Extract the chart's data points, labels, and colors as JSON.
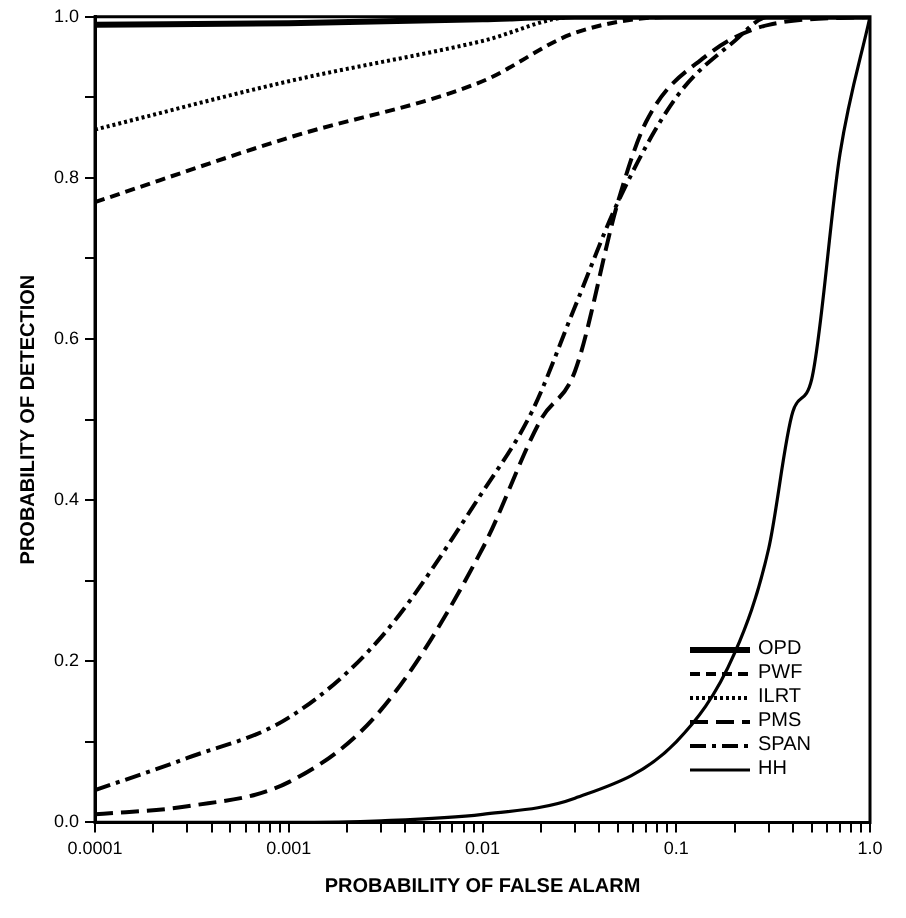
{
  "chart_data": {
    "type": "line",
    "xlabel": "PROBABILITY OF FALSE ALARM",
    "ylabel": "PROBABILITY OF DETECTION",
    "log": "x",
    "grid": false,
    "legend": "bottom right",
    "marker": "none",
    "xlim": [
      0.0001,
      1
    ],
    "ylim": [
      0,
      1
    ],
    "xticks": [
      0.0001,
      {
        "value": 0.0002,
        "label": null
      },
      {
        "value": 0.0003,
        "label": null
      },
      {
        "value": 0.0004,
        "label": null
      },
      {
        "value": 0.0005,
        "label": null
      },
      {
        "value": 0.0006,
        "label": null
      },
      {
        "value": 0.0007,
        "label": null
      },
      {
        "value": 0.0008,
        "label": null
      },
      {
        "value": 0.0009,
        "label": null
      },
      0.001,
      {
        "value": 0.002,
        "label": null
      },
      {
        "value": 0.003,
        "label": null
      },
      {
        "value": 0.004,
        "label": null
      },
      {
        "value": 0.005,
        "label": null
      },
      {
        "value": 0.006,
        "label": null
      },
      {
        "value": 0.007,
        "label": null
      },
      {
        "value": 0.008,
        "label": null
      },
      {
        "value": 0.009,
        "label": null
      },
      0.01,
      {
        "value": 0.02,
        "label": null
      },
      {
        "value": 0.03,
        "label": null
      },
      {
        "value": 0.04,
        "label": null
      },
      {
        "value": 0.05,
        "label": null
      },
      {
        "value": 0.06,
        "label": null
      },
      {
        "value": 0.07,
        "label": null
      },
      {
        "value": 0.08,
        "label": null
      },
      {
        "value": 0.09,
        "label": null
      },
      0.1,
      {
        "value": 0.2,
        "label": null
      },
      {
        "value": 0.3,
        "label": null
      },
      {
        "value": 0.4,
        "label": null
      },
      {
        "value": 0.5,
        "label": null
      },
      {
        "value": 0.6,
        "label": null
      },
      {
        "value": 0.7,
        "label": null
      },
      {
        "value": 0.8,
        "label": null
      },
      {
        "value": 0.9,
        "label": null
      },
      {
        "value": 1,
        "label": "1.0"
      }
    ],
    "yticks": [
      {
        "value": 0,
        "label": "0.0"
      },
      {
        "value": 0.1,
        "label": null
      },
      0.2,
      {
        "value": 0.3,
        "label": null
      },
      0.4,
      {
        "value": 0.5,
        "label": null
      },
      0.6,
      {
        "value": 0.7,
        "label": null
      },
      0.8,
      {
        "value": 0.9,
        "label": null
      },
      {
        "value": 1,
        "label": "1.0"
      }
    ],
    "series": [
      {
        "name": "OPD",
        "color": "#000000",
        "line_style": "solid",
        "x": [
          0.0001,
          0.001,
          0.01,
          0.03,
          1
        ],
        "values": [
          0.99,
          0.992,
          0.997,
          1,
          1
        ]
      },
      {
        "name": "PWF",
        "color": "#000000",
        "line_style": "dashed",
        "x": [
          0.0001,
          0.001,
          0.01,
          0.03,
          0.1,
          1
        ],
        "values": [
          0.77,
          0.85,
          0.92,
          0.98,
          1,
          1
        ]
      },
      {
        "name": "ILRT",
        "color": "#000000",
        "line_style": "dotted",
        "x": [
          0.0001,
          0.001,
          0.01,
          0.03,
          1
        ],
        "values": [
          0.86,
          0.92,
          0.97,
          1,
          1
        ]
      },
      {
        "name": "PMS",
        "color": "#000000",
        "line_style": "dashed",
        "x": [
          0.0001,
          0.0003,
          0.001,
          0.003,
          0.01,
          0.02,
          0.03,
          0.05,
          0.07,
          0.14,
          0.3,
          1
        ],
        "values": [
          0.01,
          0.02,
          0.05,
          0.14,
          0.34,
          0.5,
          0.56,
          0.77,
          0.87,
          0.95,
          0.99,
          1
        ]
      },
      {
        "name": "SPAN",
        "color": "#000000",
        "line_style": "dashed",
        "x": [
          0.0001,
          0.0003,
          0.001,
          0.003,
          0.01,
          0.018,
          0.03,
          0.05,
          0.1,
          0.2,
          0.3,
          1
        ],
        "values": [
          0.04,
          0.08,
          0.13,
          0.23,
          0.41,
          0.51,
          0.64,
          0.77,
          0.9,
          0.97,
          1,
          1
        ]
      },
      {
        "name": "HH",
        "color": "#000000",
        "line_style": "solid",
        "x": [
          0.0001,
          0.001,
          0.003,
          0.01,
          0.03,
          0.1,
          0.2,
          0.3,
          0.4,
          0.5,
          0.7,
          1
        ],
        "values": [
          0,
          0,
          0.002,
          0.01,
          0.03,
          0.1,
          0.21,
          0.34,
          0.51,
          0.55,
          0.83,
          1
        ]
      }
    ]
  }
}
